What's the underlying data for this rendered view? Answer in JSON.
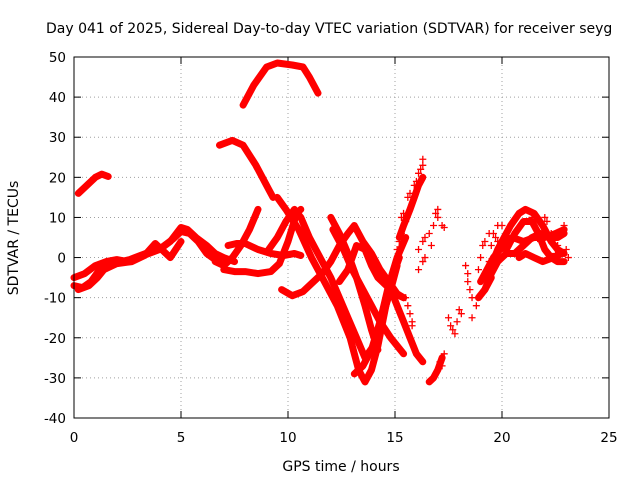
{
  "chart_data": {
    "type": "scatter",
    "title": "Day 041 of 2025, Sidereal Day-to-day VTEC variation (SDTVAR) for receiver seyg",
    "xlabel": "GPS time / hours",
    "ylabel": "SDTVAR / TECUs",
    "xlim": [
      0,
      25
    ],
    "ylim": [
      -40,
      50
    ],
    "xticks": [
      0,
      5,
      10,
      15,
      20,
      25
    ],
    "yticks": [
      -40,
      -30,
      -20,
      -10,
      0,
      10,
      20,
      30,
      40,
      50
    ],
    "grid": true,
    "marker": "+",
    "color": "#ff0000",
    "series": [
      {
        "name": "t1",
        "points": [
          [
            0.2,
            16
          ],
          [
            0.6,
            18
          ],
          [
            1.0,
            20
          ],
          [
            1.3,
            20.8
          ],
          [
            1.6,
            20.2
          ]
        ]
      },
      {
        "name": "t2",
        "points": [
          [
            7.9,
            38
          ],
          [
            8.4,
            43
          ],
          [
            9.0,
            47.5
          ],
          [
            9.5,
            48.5
          ],
          [
            10.2,
            48
          ],
          [
            10.7,
            47.5
          ],
          [
            11.0,
            45
          ],
          [
            11.4,
            41
          ]
        ]
      },
      {
        "name": "t3",
        "points": [
          [
            6.8,
            28
          ],
          [
            7.4,
            29.2
          ],
          [
            7.9,
            28
          ],
          [
            8.5,
            23
          ],
          [
            9.1,
            17
          ],
          [
            9.3,
            15
          ]
        ]
      },
      {
        "name": "t4",
        "points": [
          [
            0,
            -7
          ],
          [
            0.4,
            -7.5
          ],
          [
            0.8,
            -6
          ],
          [
            1.2,
            -3
          ],
          [
            1.6,
            -1.5
          ],
          [
            2.2,
            -1
          ],
          [
            2.6,
            -0.5
          ],
          [
            3.1,
            0.5
          ],
          [
            3.6,
            1.5
          ],
          [
            4.1,
            2.5
          ],
          [
            4.6,
            4.5
          ],
          [
            5.0,
            6.5
          ],
          [
            5.4,
            6
          ],
          [
            5.8,
            4
          ],
          [
            6.2,
            1
          ],
          [
            6.6,
            -0.5
          ],
          [
            7.0,
            -2
          ]
        ]
      },
      {
        "name": "t5",
        "points": [
          [
            0,
            -5
          ],
          [
            0.5,
            -4
          ],
          [
            1.0,
            -2
          ],
          [
            1.5,
            -1
          ],
          [
            2.0,
            -0.5
          ],
          [
            2.5,
            -1
          ],
          [
            3.0,
            0
          ],
          [
            3.5,
            1
          ],
          [
            4.0,
            2
          ],
          [
            4.5,
            4
          ],
          [
            5.0,
            7.5
          ],
          [
            5.3,
            7
          ],
          [
            5.7,
            5
          ],
          [
            6.2,
            3
          ],
          [
            6.6,
            1
          ],
          [
            7.0,
            0
          ],
          [
            7.5,
            -1
          ]
        ]
      },
      {
        "name": "t6",
        "points": [
          [
            0.2,
            -8
          ],
          [
            0.7,
            -7
          ],
          [
            1.1,
            -5
          ],
          [
            1.4,
            -3
          ],
          [
            2.0,
            -1.5
          ],
          [
            2.7,
            -1
          ],
          [
            3.3,
            0.5
          ],
          [
            3.8,
            3.5
          ],
          [
            4.1,
            2
          ],
          [
            4.5,
            0
          ],
          [
            5.0,
            4
          ]
        ]
      },
      {
        "name": "t7",
        "points": [
          [
            7.0,
            -3
          ],
          [
            7.5,
            -3.5
          ],
          [
            8.0,
            -3.5
          ],
          [
            8.6,
            -4
          ],
          [
            9.2,
            -3.5
          ],
          [
            9.6,
            -1.5
          ],
          [
            10.0,
            4
          ],
          [
            10.4,
            11
          ],
          [
            10.6,
            12
          ]
        ]
      },
      {
        "name": "t8",
        "points": [
          [
            7.2,
            3
          ],
          [
            7.6,
            3.5
          ],
          [
            8.0,
            3.5
          ],
          [
            8.6,
            2
          ],
          [
            9.2,
            1
          ],
          [
            9.8,
            0.5
          ],
          [
            10.3,
            1
          ],
          [
            10.6,
            0.5
          ]
        ]
      },
      {
        "name": "t9",
        "points": [
          [
            6.6,
            -1
          ],
          [
            7.0,
            -2
          ],
          [
            7.4,
            0
          ],
          [
            7.8,
            3
          ],
          [
            8.2,
            7
          ],
          [
            8.6,
            12
          ]
        ]
      },
      {
        "name": "t10",
        "points": [
          [
            9.1,
            2
          ],
          [
            9.5,
            5
          ],
          [
            9.9,
            9
          ],
          [
            10.3,
            12
          ],
          [
            10.6,
            10
          ],
          [
            11.0,
            5
          ],
          [
            11.5,
            0
          ],
          [
            12.0,
            -5
          ],
          [
            12.4,
            -10
          ],
          [
            12.8,
            -15
          ],
          [
            13.2,
            -20
          ],
          [
            13.6,
            -25
          ],
          [
            14.0,
            -22
          ],
          [
            14.4,
            -15
          ],
          [
            14.8,
            -8
          ],
          [
            15.1,
            -2
          ]
        ]
      },
      {
        "name": "t11",
        "points": [
          [
            9.5,
            15
          ],
          [
            9.9,
            12
          ],
          [
            10.5,
            7
          ],
          [
            11.1,
            0
          ],
          [
            11.7,
            -6
          ],
          [
            12.3,
            -12
          ],
          [
            12.9,
            -20
          ],
          [
            13.3,
            -28
          ],
          [
            13.6,
            -31
          ],
          [
            13.9,
            -28
          ],
          [
            14.2,
            -22
          ],
          [
            14.5,
            -14
          ],
          [
            14.8,
            -6
          ],
          [
            15.2,
            0
          ]
        ]
      },
      {
        "name": "t12",
        "points": [
          [
            12.1,
            7
          ],
          [
            12.6,
            2
          ],
          [
            13.0,
            -3
          ],
          [
            13.5,
            -8
          ],
          [
            13.9,
            -12
          ],
          [
            14.3,
            -16
          ],
          [
            14.8,
            -20
          ],
          [
            15.4,
            -24
          ]
        ]
      },
      {
        "name": "t13",
        "points": [
          [
            12.4,
            -6
          ],
          [
            12.8,
            -3
          ],
          [
            13.2,
            3
          ],
          [
            13.6,
            2
          ],
          [
            13.9,
            -2
          ],
          [
            14.2,
            -5
          ],
          [
            14.6,
            -7
          ],
          [
            15.0,
            -9
          ],
          [
            15.4,
            -10
          ]
        ]
      },
      {
        "name": "t14",
        "points": [
          [
            13.1,
            -29
          ],
          [
            13.5,
            -27
          ],
          [
            13.9,
            -23
          ],
          [
            14.3,
            -16
          ],
          [
            14.7,
            -7
          ],
          [
            15.1,
            0
          ],
          [
            15.5,
            5
          ]
        ]
      },
      {
        "name": "t15",
        "points": [
          [
            9.7,
            -8
          ],
          [
            10.2,
            -9.5
          ],
          [
            10.7,
            -8.5
          ],
          [
            11.1,
            -6.5
          ],
          [
            11.6,
            -4
          ],
          [
            12.0,
            -1
          ],
          [
            12.4,
            3
          ],
          [
            12.8,
            6
          ],
          [
            13.1,
            8
          ],
          [
            13.5,
            4
          ],
          [
            13.9,
            1
          ],
          [
            14.3,
            -3
          ],
          [
            14.7,
            -6
          ],
          [
            15.1,
            -9
          ],
          [
            15.4,
            -10
          ]
        ]
      },
      {
        "name": "t16",
        "points": [
          [
            12.0,
            10
          ],
          [
            12.4,
            6
          ],
          [
            12.8,
            1
          ],
          [
            13.2,
            -5
          ],
          [
            13.6,
            -12
          ],
          [
            13.9,
            -18
          ],
          [
            14.2,
            -23
          ]
        ]
      },
      {
        "name": "t17",
        "points": [
          [
            14.5,
            -5
          ],
          [
            14.8,
            -8
          ],
          [
            15.1,
            -12
          ],
          [
            15.4,
            -16
          ],
          [
            15.7,
            -20
          ],
          [
            16.0,
            -24
          ],
          [
            16.3,
            -26
          ]
        ]
      },
      {
        "name": "t18",
        "points": [
          [
            15.2,
            5
          ],
          [
            15.4,
            8
          ],
          [
            15.7,
            12
          ],
          [
            15.9,
            15
          ],
          [
            16.1,
            18
          ],
          [
            16.3,
            20
          ]
        ]
      },
      {
        "name": "t19",
        "points": [
          [
            16.6,
            -31
          ],
          [
            16.8,
            -30
          ],
          [
            17.0,
            -28
          ],
          [
            17.2,
            -25
          ]
        ]
      },
      {
        "name": "t20",
        "points": [
          [
            19.2,
            -8
          ],
          [
            19.5,
            -4
          ],
          [
            19.8,
            -1
          ],
          [
            20.2,
            1
          ],
          [
            20.6,
            1
          ],
          [
            21.0,
            3
          ],
          [
            21.4,
            5
          ],
          [
            21.8,
            6
          ],
          [
            22.2,
            5
          ],
          [
            22.6,
            5
          ],
          [
            22.9,
            6
          ]
        ]
      },
      {
        "name": "t21",
        "points": [
          [
            19.5,
            -2
          ],
          [
            19.8,
            2
          ],
          [
            20.1,
            5
          ],
          [
            20.4,
            8
          ],
          [
            20.8,
            11
          ],
          [
            21.1,
            12
          ],
          [
            21.5,
            11
          ],
          [
            21.9,
            8
          ],
          [
            22.3,
            4
          ],
          [
            22.6,
            2
          ],
          [
            22.9,
            1
          ]
        ]
      },
      {
        "name": "t22",
        "points": [
          [
            20.2,
            2
          ],
          [
            20.6,
            6
          ],
          [
            21.0,
            9
          ],
          [
            21.4,
            9
          ],
          [
            21.7,
            6
          ],
          [
            22.0,
            2
          ],
          [
            22.3,
            0
          ],
          [
            22.6,
            -1
          ],
          [
            22.9,
            -1
          ]
        ]
      },
      {
        "name": "t23",
        "points": [
          [
            20.8,
            0
          ],
          [
            21.1,
            1
          ],
          [
            21.5,
            0
          ],
          [
            21.9,
            -1
          ],
          [
            22.4,
            0
          ],
          [
            22.8,
            1
          ]
        ]
      },
      {
        "name": "t24",
        "points": [
          [
            20.0,
            4
          ],
          [
            20.5,
            5
          ],
          [
            21.0,
            4
          ],
          [
            21.5,
            5
          ],
          [
            22.0,
            5
          ],
          [
            22.5,
            6
          ],
          [
            22.9,
            7
          ]
        ]
      },
      {
        "name": "t25",
        "points": [
          [
            19.0,
            -6
          ],
          [
            19.3,
            -3
          ],
          [
            19.6,
            0
          ],
          [
            19.9,
            2
          ],
          [
            20.3,
            3
          ]
        ]
      },
      {
        "name": "t26",
        "points": [
          [
            18.9,
            -10
          ],
          [
            19.2,
            -8
          ],
          [
            19.5,
            -5
          ]
        ]
      }
    ],
    "scatter": [
      [
        15.5,
        -10
      ],
      [
        15.6,
        -12
      ],
      [
        15.7,
        -14
      ],
      [
        15.8,
        -16
      ],
      [
        15.8,
        -17
      ],
      [
        15.3,
        10
      ],
      [
        15.4,
        11
      ],
      [
        15.6,
        15
      ],
      [
        15.7,
        16
      ],
      [
        15.9,
        18
      ],
      [
        16.0,
        19
      ],
      [
        16.1,
        21
      ],
      [
        16.2,
        22
      ],
      [
        16.3,
        23
      ],
      [
        16.3,
        24.5
      ],
      [
        15.1,
        2
      ],
      [
        15.2,
        4
      ],
      [
        15.3,
        6
      ],
      [
        15.5,
        9
      ],
      [
        16.1,
        2
      ],
      [
        16.3,
        4
      ],
      [
        16.4,
        5
      ],
      [
        16.6,
        6
      ],
      [
        16.7,
        3
      ],
      [
        16.8,
        8
      ],
      [
        16.9,
        11
      ],
      [
        17.0,
        12
      ],
      [
        17.0,
        10
      ],
      [
        17.2,
        8
      ],
      [
        17.3,
        7.5
      ],
      [
        16.1,
        -3
      ],
      [
        16.3,
        -1
      ],
      [
        16.4,
        0
      ],
      [
        17.1,
        -26
      ],
      [
        17.2,
        -27
      ],
      [
        17.3,
        -24
      ],
      [
        17.5,
        -15
      ],
      [
        17.6,
        -17
      ],
      [
        17.7,
        -18
      ],
      [
        17.8,
        -19
      ],
      [
        17.9,
        -16
      ],
      [
        18.1,
        -14
      ],
      [
        18.0,
        -13
      ],
      [
        18.3,
        -2
      ],
      [
        18.4,
        -4
      ],
      [
        18.4,
        -6
      ],
      [
        18.5,
        -8
      ],
      [
        18.6,
        -10
      ],
      [
        18.6,
        -15
      ],
      [
        18.8,
        -12
      ],
      [
        18.9,
        -3
      ],
      [
        19.0,
        0
      ],
      [
        19.1,
        3
      ],
      [
        19.2,
        4
      ],
      [
        19.4,
        -1
      ],
      [
        19.5,
        3
      ],
      [
        19.7,
        5
      ],
      [
        19.8,
        8
      ],
      [
        20.0,
        8
      ],
      [
        19.6,
        6
      ],
      [
        19.8,
        4
      ],
      [
        19.4,
        6
      ],
      [
        21.2,
        9
      ],
      [
        21.4,
        10
      ],
      [
        21.6,
        7
      ],
      [
        21.8,
        4
      ],
      [
        22.0,
        10
      ],
      [
        22.1,
        9
      ],
      [
        22.3,
        6
      ],
      [
        22.5,
        1
      ],
      [
        22.6,
        3
      ],
      [
        22.8,
        6
      ],
      [
        22.9,
        8
      ],
      [
        23.0,
        2
      ],
      [
        23.1,
        0
      ]
    ]
  }
}
